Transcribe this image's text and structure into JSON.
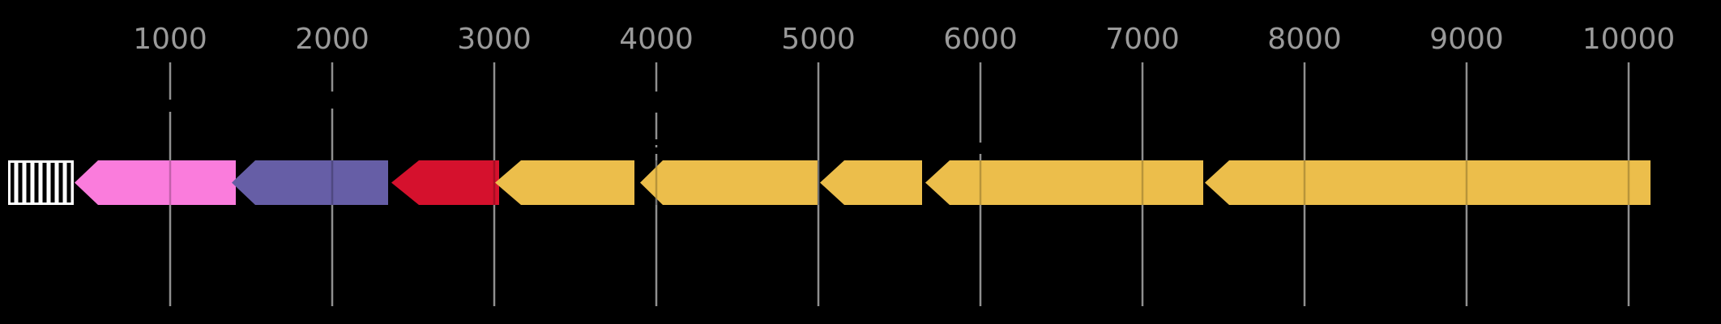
{
  "background_color": "#000000",
  "axis": {
    "labels_position": "top",
    "tick_label_color": "#9a9a9a",
    "gridline_color": "#8f8f8f",
    "tick_labels": [
      "1000",
      "2000",
      "3000",
      "4000",
      "5000",
      "6000",
      "7000",
      "8000",
      "9000",
      "10000"
    ]
  },
  "chart_data": {
    "type": "gene_arrow_map",
    "title": "",
    "orientation": "horizontal",
    "xlabel": "",
    "ylabel": "",
    "x_ticks": [
      1000,
      2000,
      3000,
      4000,
      5000,
      6000,
      7000,
      8000,
      9000,
      10000
    ],
    "x_visible_range": [
      -50,
      10570
    ],
    "grid": true,
    "strand": "reverse (all arrows point left)",
    "features": [
      {
        "id": "feature-hatched-box",
        "start": 0,
        "end": 405,
        "shape": "box",
        "fill": "vertical-black-white-hatch",
        "outline": "#ffffff"
      },
      {
        "id": "feature-pink",
        "start": 410,
        "end": 1405,
        "shape": "arrow-left",
        "color": "#fa7cdc",
        "head_units": 145
      },
      {
        "id": "feature-purple",
        "start": 1380,
        "end": 2345,
        "shape": "arrow-left",
        "color": "#665ea6",
        "head_units": 145
      },
      {
        "id": "feature-red",
        "start": 2365,
        "end": 3030,
        "shape": "arrow-left",
        "color": "#d5112d",
        "head_units": 170
      },
      {
        "id": "feature-yellow-1",
        "start": 3005,
        "end": 3865,
        "shape": "arrow-left",
        "color": "#ecbe4b",
        "head_units": 160
      },
      {
        "id": "feature-yellow-2",
        "start": 3900,
        "end": 4995,
        "shape": "arrow-left",
        "color": "#ecbe4b",
        "head_units": 140
      },
      {
        "id": "feature-yellow-3",
        "start": 5010,
        "end": 5640,
        "shape": "arrow-left",
        "color": "#ecbe4b",
        "head_units": 150
      },
      {
        "id": "feature-yellow-4",
        "start": 5660,
        "end": 7375,
        "shape": "arrow-left",
        "color": "#ecbe4b",
        "head_units": 150
      },
      {
        "id": "feature-yellow-5",
        "start": 7385,
        "end": 10135,
        "shape": "arrow-left",
        "color": "#ecbe4b",
        "head_units": 150
      }
    ],
    "black_connector_marks_on_gridlines": [
      {
        "x_value": 1000,
        "y_from": 123,
        "y_to": 138
      },
      {
        "x_value": 2000,
        "y_from": 113,
        "y_to": 134
      },
      {
        "x_value": 4000,
        "y_from": 113,
        "y_to": 139
      },
      {
        "x_value": 4000,
        "y_from": 172,
        "y_to": 179
      },
      {
        "x_value": 4000,
        "y_from": 182,
        "y_to": 190
      },
      {
        "x_value": 6000,
        "y_from": 176,
        "y_to": 190
      }
    ]
  }
}
